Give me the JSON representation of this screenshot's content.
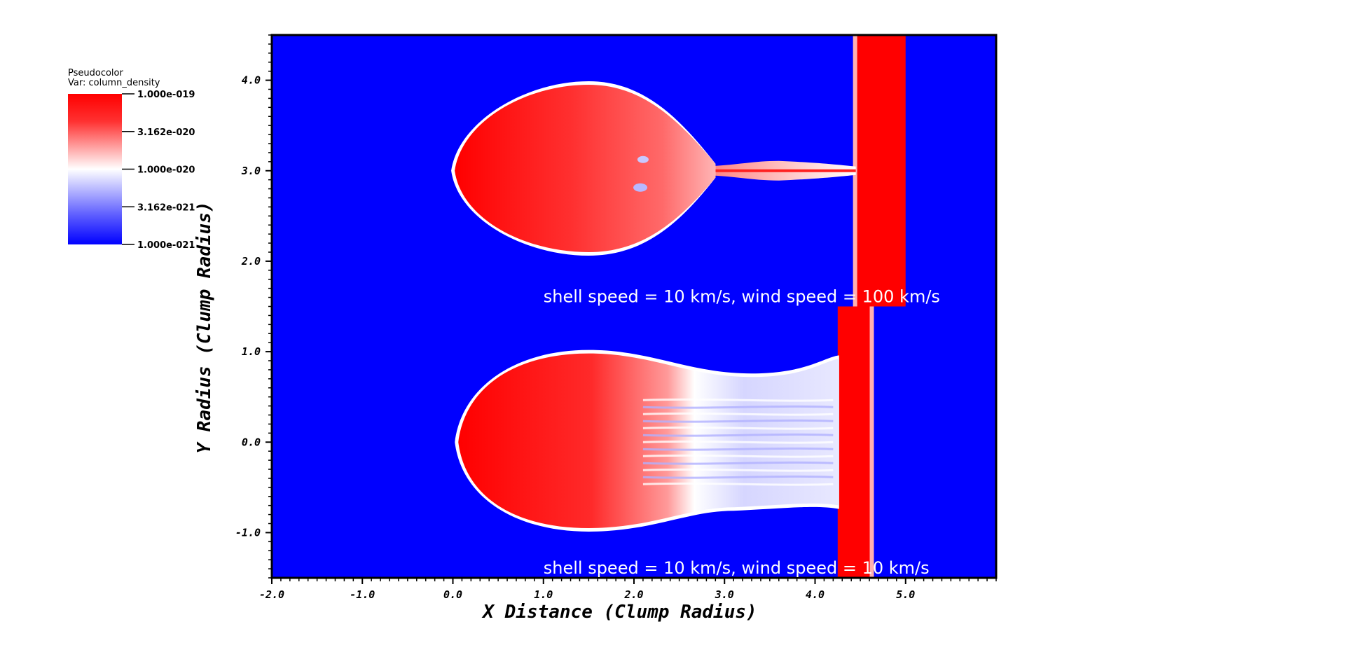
{
  "chart_data": {
    "type": "heatmap",
    "xlabel": "X Distance (Clump Radius)",
    "ylabel": "Y Radius (Clump Radius)",
    "xlim": [
      -2.0,
      6.0
    ],
    "ylim": [
      -1.5,
      4.5
    ],
    "xticks": [
      -2.0,
      -1.0,
      0.0,
      1.0,
      2.0,
      3.0,
      4.0,
      5.0
    ],
    "xtick_labels": [
      "-2.0",
      "-1.0",
      "0.0",
      "1.0",
      "2.0",
      "3.0",
      "4.0",
      "5.0"
    ],
    "yticks": [
      -1.0,
      0.0,
      1.0,
      2.0,
      3.0,
      4.0
    ],
    "ytick_labels": [
      "-1.0",
      "0.0",
      "1.0",
      "2.0",
      "3.0",
      "4.0"
    ],
    "colorbar": {
      "title": "Pseudocolor",
      "variable": "Var: column_density",
      "scale": "log",
      "ticks": [
        1e-19,
        3.162e-20,
        1e-20,
        3.162e-21,
        1e-21
      ],
      "tick_labels": [
        "1.000e-019",
        "3.162e-020",
        "1.000e-020",
        "3.162e-021",
        "1.000e-021"
      ],
      "colors": [
        "#ff0000",
        "#ffffff",
        "#0000ff"
      ]
    },
    "panels": [
      {
        "caption": "shell speed = 10 km/s, wind speed = 100 km/s",
        "y_range": [
          1.5,
          4.5
        ],
        "clump_center_y": 3.0,
        "clump_head_x": 0.02,
        "shell_x": [
          4.45,
          5.0
        ]
      },
      {
        "caption": "shell speed = 10 km/s, wind speed = 10 km/s",
        "y_range": [
          -1.5,
          1.5
        ],
        "clump_center_y": 0.0,
        "clump_head_x": 0.06,
        "shell_x": [
          4.25,
          4.65
        ]
      }
    ],
    "grid": false
  },
  "colors": {
    "background": "#0000ff",
    "high": "#ff0000",
    "mid": "#ffffff",
    "low": "#0000ff"
  }
}
